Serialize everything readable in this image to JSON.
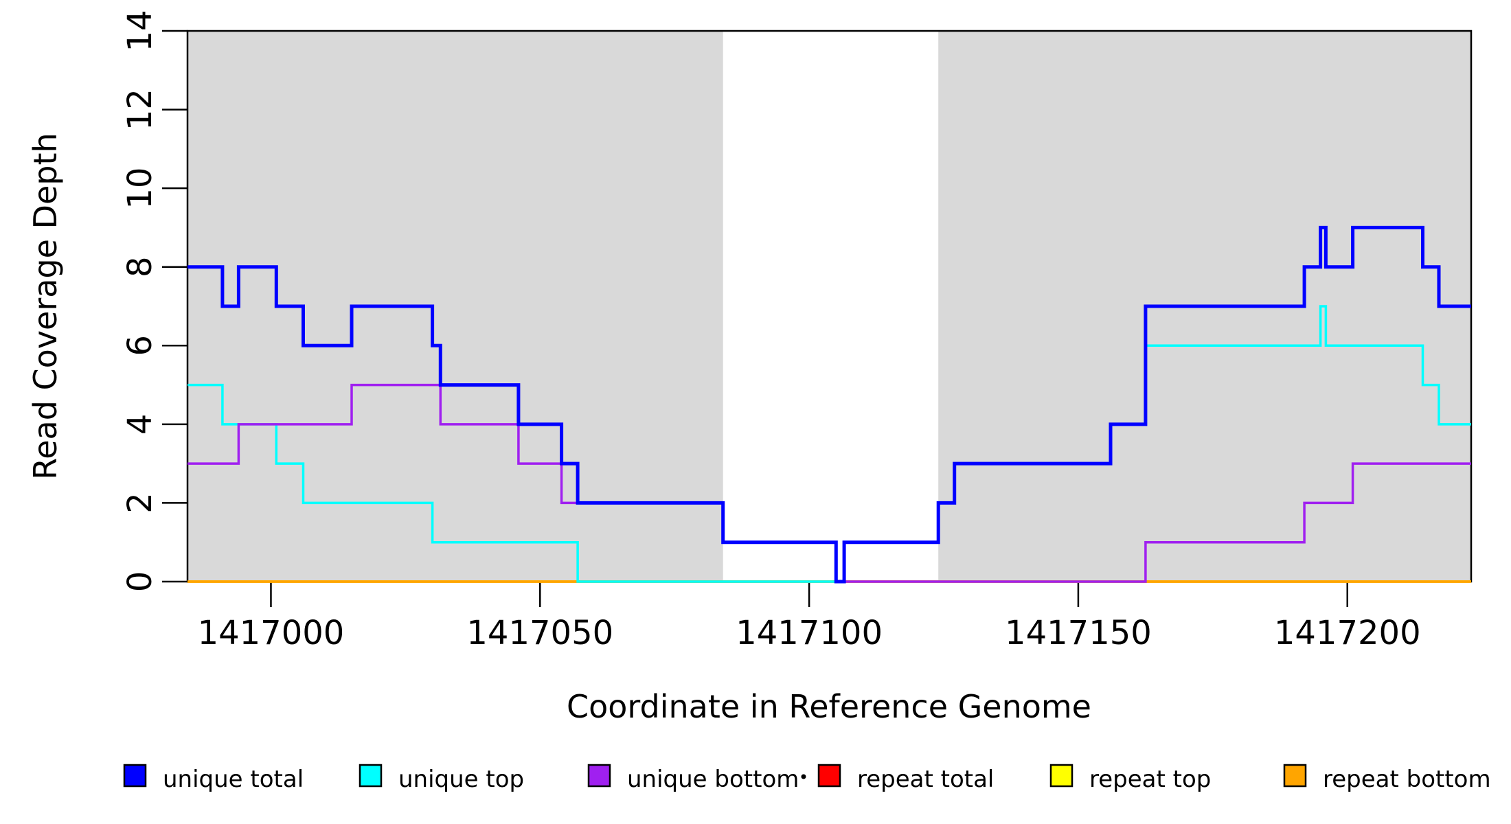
{
  "chart_data": {
    "type": "step-line",
    "xlabel": "Coordinate in Reference Genome",
    "ylabel": "Read Coverage Depth",
    "x_ticks": [
      1417000,
      1417050,
      1417100,
      1417150,
      1417200
    ],
    "y_ticks": [
      0,
      2,
      4,
      6,
      8,
      10,
      12,
      14
    ],
    "x_range": [
      1416984.5,
      1417223
    ],
    "y_range": [
      0,
      14
    ],
    "grid": "off",
    "shaded_regions": [
      {
        "name": "left-shaded-region",
        "x1": 1416984.5,
        "x2": 1417084,
        "color": "#D9D9D9"
      },
      {
        "name": "right-shaded-region",
        "x1": 1417124,
        "x2": 1417223,
        "color": "#D9D9D9"
      }
    ],
    "draw_order": [
      "repeat total",
      "repeat top",
      "repeat bottom",
      "unique top",
      "unique bottom",
      "unique total"
    ],
    "series": [
      {
        "name": "unique total",
        "color": "#0000FF",
        "width": 5,
        "breakpoints": [
          [
            1416984.5,
            8
          ],
          [
            1416991,
            7
          ],
          [
            1416994,
            8
          ],
          [
            1417001,
            7
          ],
          [
            1417006,
            6
          ],
          [
            1417015,
            7
          ],
          [
            1417030,
            6
          ],
          [
            1417031.5,
            5
          ],
          [
            1417046,
            4
          ],
          [
            1417054,
            3
          ],
          [
            1417057,
            2
          ],
          [
            1417084,
            1
          ],
          [
            1417105,
            0
          ],
          [
            1417106.5,
            1
          ],
          [
            1417124,
            2
          ],
          [
            1417127,
            3
          ],
          [
            1417156,
            4
          ],
          [
            1417162.5,
            7
          ],
          [
            1417192,
            8
          ],
          [
            1417195,
            9
          ],
          [
            1417196,
            8
          ],
          [
            1417201,
            9
          ],
          [
            1417214,
            8
          ],
          [
            1417217,
            7
          ]
        ]
      },
      {
        "name": "unique top",
        "color": "#00FFFF",
        "width": 3.5,
        "breakpoints": [
          [
            1416984.5,
            5
          ],
          [
            1416991,
            4
          ],
          [
            1417001,
            3
          ],
          [
            1417006,
            2
          ],
          [
            1417030,
            1
          ],
          [
            1417057,
            0
          ],
          [
            1417106.5,
            1
          ],
          [
            1417124,
            2
          ],
          [
            1417127,
            3
          ],
          [
            1417156,
            4
          ],
          [
            1417162.5,
            6
          ],
          [
            1417195,
            7
          ],
          [
            1417196,
            6
          ],
          [
            1417214,
            5
          ],
          [
            1417217,
            4
          ]
        ]
      },
      {
        "name": "unique bottom",
        "color": "#A020F0",
        "width": 3.5,
        "breakpoints": [
          [
            1416984.5,
            3
          ],
          [
            1416994,
            4
          ],
          [
            1417015,
            5
          ],
          [
            1417031.5,
            4
          ],
          [
            1417046,
            3
          ],
          [
            1417054,
            2
          ],
          [
            1417084,
            1
          ],
          [
            1417105,
            0
          ],
          [
            1417162.5,
            1
          ],
          [
            1417192,
            2
          ],
          [
            1417201,
            3
          ]
        ]
      },
      {
        "name": "repeat total",
        "color": "#FF0000",
        "width": 3.5,
        "breakpoints": [
          [
            1416984.5,
            0
          ]
        ]
      },
      {
        "name": "repeat top",
        "color": "#FFFF00",
        "width": 3.5,
        "breakpoints": [
          [
            1416984.5,
            0
          ]
        ]
      },
      {
        "name": "repeat bottom",
        "color": "#FFA500",
        "width": 3.5,
        "breakpoints": [
          [
            1416984.5,
            0
          ]
        ]
      }
    ]
  },
  "legend": {
    "items": [
      {
        "label": "unique total",
        "color": "#0000FF"
      },
      {
        "label": "unique top",
        "color": "#00FFFF"
      },
      {
        "label": "unique bottom",
        "color": "#A020F0"
      },
      {
        "label": "repeat total",
        "color": "#FF0000"
      },
      {
        "label": "repeat top",
        "color": "#FFFF00"
      },
      {
        "label": "repeat bottom",
        "color": "#FFA500"
      }
    ]
  },
  "colors": {
    "axis": "#000000",
    "background": "#FFFFFF",
    "shading": "#D9D9D9"
  }
}
